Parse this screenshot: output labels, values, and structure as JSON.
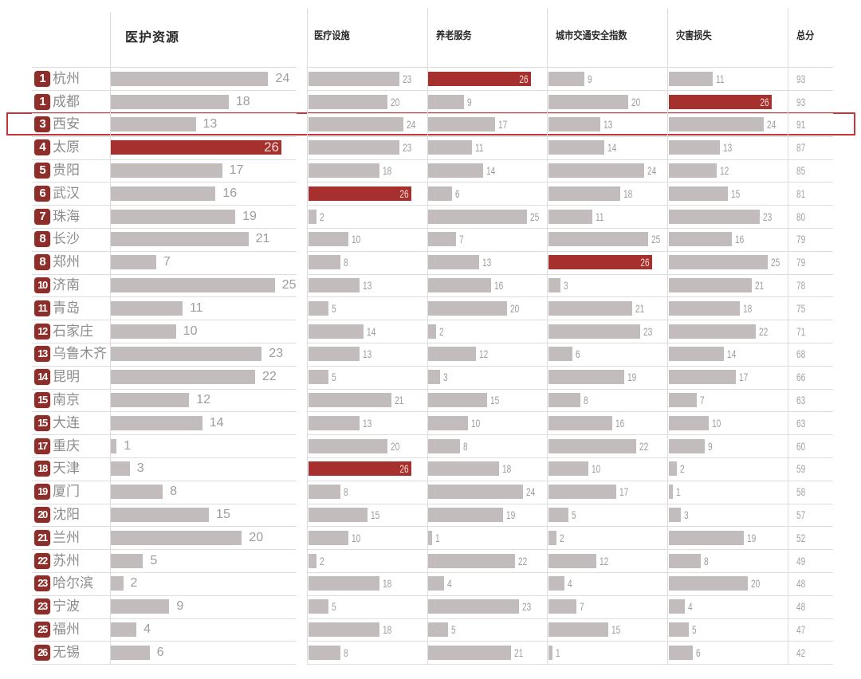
{
  "header": {
    "columns": [
      {
        "label": "医护资源"
      },
      {
        "label": "医疗设施"
      },
      {
        "label": "养老服务"
      },
      {
        "label": "城市交通安全指数"
      },
      {
        "label": "灾害损失"
      }
    ],
    "total_label": "总分"
  },
  "max_score": 26,
  "rows": [
    {
      "rank": "1",
      "city": "杭州",
      "values": [
        24,
        23,
        26,
        9,
        11
      ],
      "total": 93
    },
    {
      "rank": "1",
      "city": "成都",
      "values": [
        18,
        20,
        9,
        20,
        26
      ],
      "total": 93
    },
    {
      "rank": "3",
      "city": "西安",
      "values": [
        13,
        24,
        17,
        13,
        24
      ],
      "total": 91
    },
    {
      "rank": "4",
      "city": "太原",
      "values": [
        26,
        23,
        11,
        14,
        13
      ],
      "total": 87
    },
    {
      "rank": "5",
      "city": "贵阳",
      "values": [
        17,
        18,
        14,
        24,
        12
      ],
      "total": 85
    },
    {
      "rank": "6",
      "city": "武汉",
      "values": [
        16,
        26,
        6,
        18,
        15
      ],
      "total": 81
    },
    {
      "rank": "7",
      "city": "珠海",
      "values": [
        19,
        2,
        25,
        11,
        23
      ],
      "total": 80
    },
    {
      "rank": "8",
      "city": "长沙",
      "values": [
        21,
        10,
        7,
        25,
        16
      ],
      "total": 79
    },
    {
      "rank": "8",
      "city": "郑州",
      "values": [
        7,
        8,
        13,
        26,
        25
      ],
      "total": 79
    },
    {
      "rank": "10",
      "city": "济南",
      "values": [
        25,
        13,
        16,
        3,
        21
      ],
      "total": 78
    },
    {
      "rank": "11",
      "city": "青岛",
      "values": [
        11,
        5,
        20,
        21,
        18
      ],
      "total": 75
    },
    {
      "rank": "12",
      "city": "石家庄",
      "values": [
        10,
        14,
        2,
        23,
        22
      ],
      "total": 71
    },
    {
      "rank": "13",
      "city": "乌鲁木齐",
      "values": [
        23,
        13,
        12,
        6,
        14
      ],
      "total": 68
    },
    {
      "rank": "14",
      "city": "昆明",
      "values": [
        22,
        5,
        3,
        19,
        17
      ],
      "total": 66
    },
    {
      "rank": "15",
      "city": "南京",
      "values": [
        12,
        21,
        15,
        8,
        7
      ],
      "total": 63
    },
    {
      "rank": "15",
      "city": "大连",
      "values": [
        14,
        13,
        10,
        16,
        10
      ],
      "total": 63
    },
    {
      "rank": "17",
      "city": "重庆",
      "values": [
        1,
        20,
        8,
        22,
        9
      ],
      "total": 60
    },
    {
      "rank": "18",
      "city": "天津",
      "values": [
        3,
        26,
        18,
        10,
        2
      ],
      "total": 59
    },
    {
      "rank": "19",
      "city": "厦门",
      "values": [
        8,
        8,
        24,
        17,
        1
      ],
      "total": 58
    },
    {
      "rank": "20",
      "city": "沈阳",
      "values": [
        15,
        15,
        19,
        5,
        3
      ],
      "total": 57
    },
    {
      "rank": "21",
      "city": "兰州",
      "values": [
        20,
        10,
        1,
        2,
        19
      ],
      "total": 52
    },
    {
      "rank": "22",
      "city": "苏州",
      "values": [
        5,
        2,
        22,
        12,
        8
      ],
      "total": 49
    },
    {
      "rank": "23",
      "city": "哈尔滨",
      "values": [
        2,
        18,
        4,
        4,
        20
      ],
      "total": 48
    },
    {
      "rank": "23",
      "city": "宁波",
      "values": [
        9,
        5,
        23,
        7,
        4
      ],
      "total": 48
    },
    {
      "rank": "25",
      "city": "福州",
      "values": [
        4,
        18,
        5,
        15,
        5
      ],
      "total": 47
    },
    {
      "rank": "26",
      "city": "无锡",
      "values": [
        6,
        8,
        21,
        1,
        6
      ],
      "total": 42
    }
  ],
  "highlight": {
    "city": "西安",
    "row_index": 2
  },
  "colors": {
    "bar": "#c3bcbc",
    "bar_max": "#a5302d",
    "rank_badge": "#8e2e2b",
    "highlight_box": "#c8343c",
    "label": "#9d9d9d",
    "city": "#8c8c8c"
  },
  "chart_data": {
    "type": "bar",
    "orientation": "horizontal",
    "title": "",
    "categories": [
      "杭州",
      "成都",
      "西安",
      "太原",
      "贵阳",
      "武汉",
      "珠海",
      "长沙",
      "郑州",
      "济南",
      "青岛",
      "石家庄",
      "乌鲁木齐",
      "昆明",
      "南京",
      "大连",
      "重庆",
      "天津",
      "厦门",
      "沈阳",
      "兰州",
      "苏州",
      "哈尔滨",
      "宁波",
      "福州",
      "无锡"
    ],
    "ranks": [
      1,
      1,
      3,
      4,
      5,
      6,
      7,
      8,
      8,
      10,
      11,
      12,
      13,
      14,
      15,
      15,
      17,
      18,
      19,
      20,
      21,
      22,
      23,
      23,
      25,
      26
    ],
    "series": [
      {
        "name": "医护资源",
        "values": [
          24,
          18,
          13,
          26,
          17,
          16,
          19,
          21,
          7,
          25,
          11,
          10,
          23,
          22,
          12,
          14,
          1,
          3,
          8,
          15,
          20,
          5,
          2,
          9,
          4,
          6
        ]
      },
      {
        "name": "医疗设施",
        "values": [
          23,
          20,
          24,
          23,
          18,
          26,
          2,
          10,
          8,
          13,
          5,
          14,
          13,
          5,
          21,
          13,
          20,
          26,
          8,
          15,
          10,
          2,
          18,
          5,
          18,
          8
        ]
      },
      {
        "name": "养老服务",
        "values": [
          26,
          9,
          17,
          11,
          14,
          6,
          25,
          7,
          13,
          16,
          20,
          2,
          12,
          3,
          15,
          10,
          8,
          18,
          24,
          19,
          1,
          22,
          4,
          23,
          5,
          21
        ]
      },
      {
        "name": "城市交通安全指数",
        "values": [
          9,
          20,
          13,
          14,
          24,
          18,
          11,
          25,
          26,
          3,
          21,
          23,
          6,
          19,
          8,
          16,
          22,
          10,
          17,
          5,
          2,
          12,
          4,
          7,
          15,
          1
        ]
      },
      {
        "name": "灾害损失",
        "values": [
          11,
          26,
          24,
          13,
          12,
          15,
          23,
          16,
          25,
          21,
          18,
          22,
          14,
          17,
          7,
          10,
          9,
          2,
          1,
          3,
          19,
          8,
          20,
          4,
          5,
          6
        ]
      }
    ],
    "totals": {
      "name": "总分",
      "values": [
        93,
        93,
        91,
        87,
        85,
        81,
        80,
        79,
        79,
        78,
        75,
        71,
        68,
        66,
        63,
        63,
        60,
        59,
        58,
        57,
        52,
        49,
        48,
        48,
        47,
        42
      ]
    },
    "xlim": [
      0,
      26
    ],
    "max_value_highlighted": 26,
    "highlighted_category": "西安",
    "grid": false,
    "legend": "none"
  }
}
